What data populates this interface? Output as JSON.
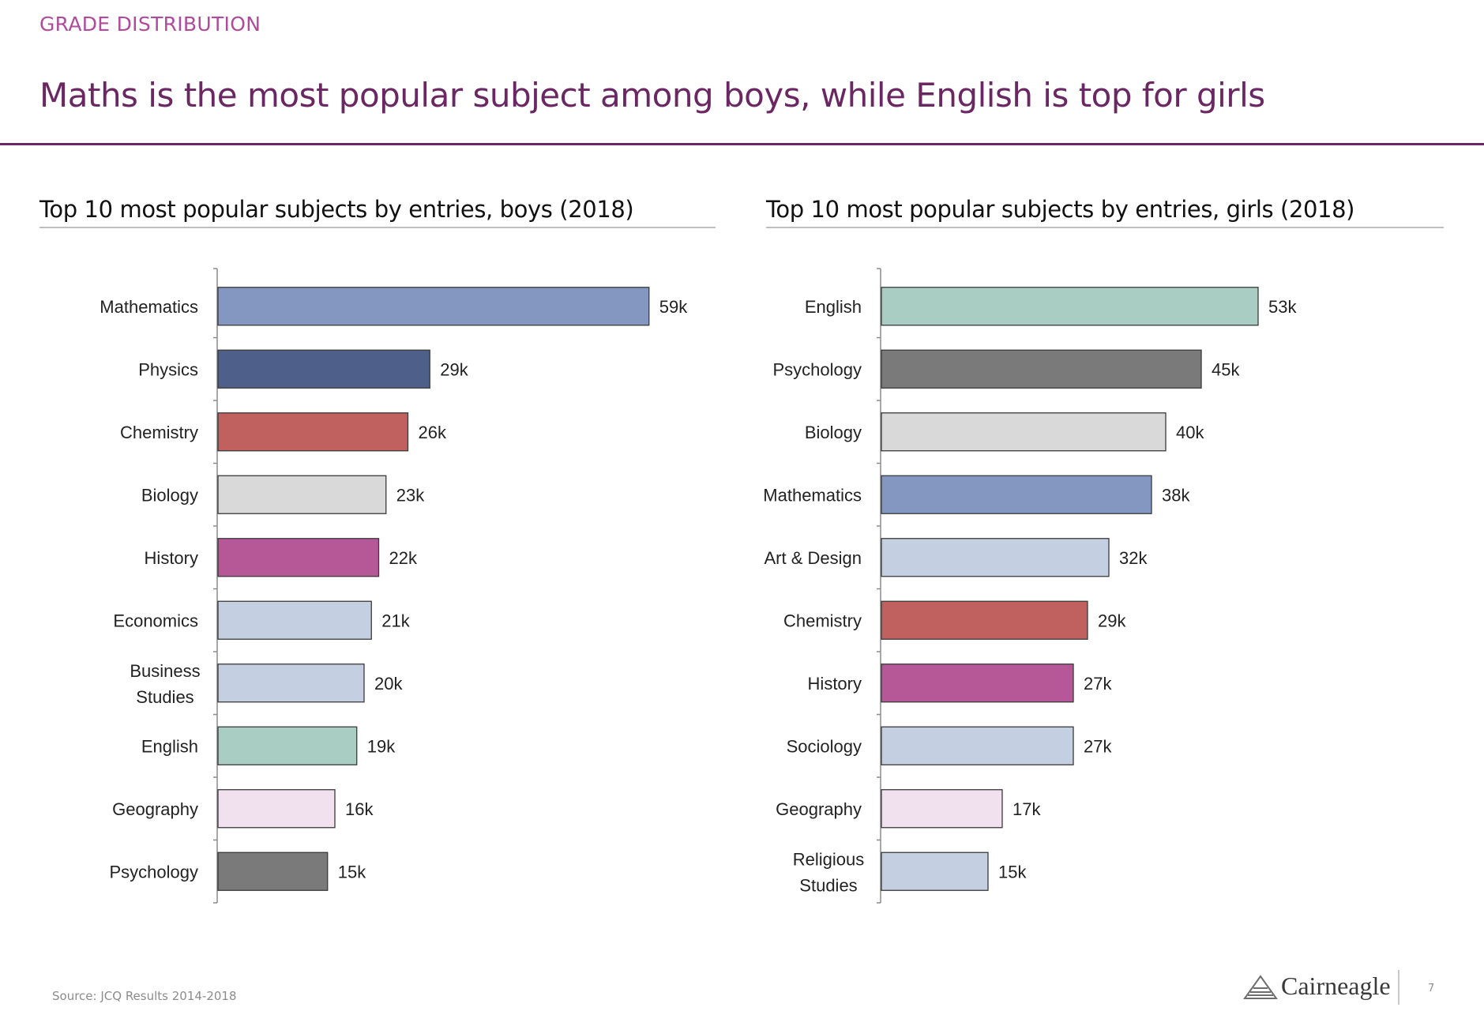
{
  "header": {
    "kicker": "GRADE DISTRIBUTION",
    "headline": "Maths is the most popular subject among boys, while English is top for girls"
  },
  "footer": {
    "source": "Source: JCQ Results 2014-2018",
    "logo_text": "Cairneagle",
    "page_number": "7"
  },
  "chart_data": [
    {
      "type": "bar",
      "orientation": "horizontal",
      "title": "Top 10 most popular subjects by entries, boys (2018)",
      "xlim": [
        0,
        59
      ],
      "categories": [
        "Mathematics",
        "Physics",
        "Chemistry",
        "Biology",
        "History",
        "Economics",
        "Business Studies",
        "English",
        "Geography",
        "Psychology"
      ],
      "values": [
        59,
        29,
        26,
        23,
        22,
        21,
        20,
        19,
        16,
        15
      ],
      "labels": [
        "59k",
        "29k",
        "26k",
        "23k",
        "22k",
        "21k",
        "20k",
        "19k",
        "16k",
        "15k"
      ],
      "colors": [
        "#8497c1",
        "#4e5f8a",
        "#c0605f",
        "#d9d9d9",
        "#b65898",
        "#c5cfe2",
        "#c5cfe2",
        "#a9ccc3",
        "#f1e0ee",
        "#7a7a7a"
      ]
    },
    {
      "type": "bar",
      "orientation": "horizontal",
      "title": "Top 10 most popular subjects by entries, girls (2018)",
      "xlim": [
        0,
        59
      ],
      "categories": [
        "English",
        "Psychology",
        "Biology",
        "Mathematics",
        "Art & Design",
        "Chemistry",
        "History",
        "Sociology",
        "Geography",
        "Religious Studies"
      ],
      "values": [
        53,
        45,
        40,
        38,
        32,
        29,
        27,
        27,
        17,
        15
      ],
      "labels": [
        "53k",
        "45k",
        "40k",
        "38k",
        "32k",
        "29k",
        "27k",
        "27k",
        "17k",
        "15k"
      ],
      "colors": [
        "#a9ccc3",
        "#7a7a7a",
        "#d9d9d9",
        "#8497c1",
        "#c5cfe2",
        "#c0605f",
        "#b65898",
        "#c5cfe2",
        "#f1e0ee",
        "#c5cfe2"
      ]
    }
  ]
}
